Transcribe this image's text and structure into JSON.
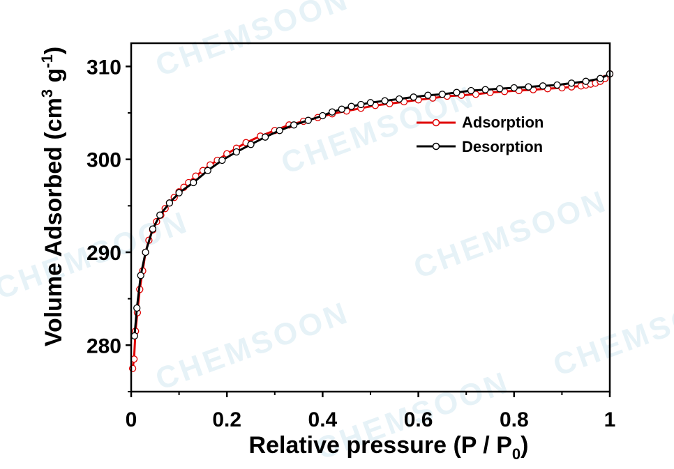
{
  "chart_data": {
    "type": "line",
    "title": "",
    "xlabel": "Relative pressure (P / P0)",
    "xlabel_parts": {
      "main": "Relative pressure (P / P",
      "sub": "0",
      "end": ")"
    },
    "ylabel": "Volume Adsorbed (cm3 g-1)",
    "ylabel_parts": {
      "main": "Volume Adsorbed (cm",
      "sup1": "3",
      "mid": " g",
      "sup2": "-1",
      "end": ")"
    },
    "xlim": [
      0,
      1
    ],
    "ylim": [
      275,
      312.5
    ],
    "xticks": [
      0,
      0.2,
      0.4,
      0.6,
      0.8,
      1
    ],
    "xtick_labels": [
      "0",
      "0.2",
      "0.4",
      "0.6",
      "0.8",
      "1"
    ],
    "yticks": [
      280,
      290,
      300,
      310
    ],
    "ytick_labels": [
      "280",
      "290",
      "300",
      "310"
    ],
    "grid": false,
    "legend_position": "upper-right",
    "watermark": "CHEMSOON",
    "series": [
      {
        "name": "Adsorption",
        "color": "#e00000",
        "marker": "open-circle",
        "x": [
          0.003,
          0.006,
          0.009,
          0.013,
          0.018,
          0.024,
          0.03,
          0.037,
          0.045,
          0.053,
          0.062,
          0.071,
          0.08,
          0.09,
          0.1,
          0.11,
          0.12,
          0.135,
          0.15,
          0.165,
          0.18,
          0.2,
          0.22,
          0.24,
          0.27,
          0.3,
          0.33,
          0.36,
          0.39,
          0.42,
          0.45,
          0.48,
          0.51,
          0.54,
          0.57,
          0.6,
          0.63,
          0.66,
          0.69,
          0.72,
          0.75,
          0.78,
          0.81,
          0.84,
          0.87,
          0.9,
          0.92,
          0.94,
          0.95,
          0.96,
          0.97,
          0.98,
          0.99,
          1.0
        ],
        "y": [
          277.5,
          278.5,
          281.5,
          283.5,
          286.0,
          288.0,
          290.0,
          291.3,
          292.4,
          293.3,
          294.0,
          294.7,
          295.3,
          295.9,
          296.5,
          297.0,
          297.5,
          298.2,
          298.8,
          299.4,
          299.9,
          300.6,
          301.2,
          301.8,
          302.5,
          303.1,
          303.7,
          304.1,
          304.5,
          304.9,
          305.2,
          305.5,
          305.8,
          306.0,
          306.2,
          306.4,
          306.6,
          306.8,
          306.9,
          307.0,
          307.2,
          307.3,
          307.4,
          307.5,
          307.6,
          307.7,
          307.8,
          307.9,
          308.0,
          308.1,
          308.2,
          308.4,
          308.7,
          309.2
        ]
      },
      {
        "name": "Desorption",
        "color": "#000000",
        "marker": "open-circle",
        "x": [
          1.0,
          0.98,
          0.95,
          0.92,
          0.89,
          0.86,
          0.83,
          0.8,
          0.77,
          0.74,
          0.71,
          0.68,
          0.65,
          0.62,
          0.59,
          0.56,
          0.53,
          0.5,
          0.48,
          0.46,
          0.44,
          0.42,
          0.4,
          0.37,
          0.34,
          0.31,
          0.28,
          0.25,
          0.22,
          0.19,
          0.16,
          0.13,
          0.1,
          0.08,
          0.06,
          0.045,
          0.03,
          0.02,
          0.012,
          0.007
        ],
        "y": [
          309.2,
          308.7,
          308.4,
          308.2,
          308.0,
          307.9,
          307.8,
          307.7,
          307.6,
          307.5,
          307.4,
          307.2,
          307.0,
          306.9,
          306.7,
          306.5,
          306.3,
          306.1,
          305.9,
          305.7,
          305.4,
          305.1,
          304.7,
          304.2,
          303.7,
          303.1,
          302.4,
          301.6,
          300.8,
          299.9,
          298.8,
          297.5,
          296.4,
          295.3,
          294.0,
          292.5,
          290.0,
          287.5,
          284.0,
          281.0
        ]
      }
    ]
  }
}
